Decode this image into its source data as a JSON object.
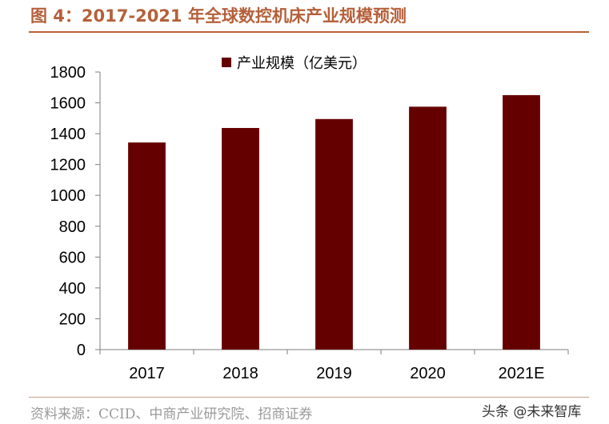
{
  "header": {
    "title": "图 4：2017-2021 年全球数控机床产业规模预测"
  },
  "footer": {
    "source": "资料来源：CCID、中商产业研究院、招商证券",
    "watermark": "头条 @未来智库"
  },
  "colors": {
    "title": "#b5603a",
    "bar": "#650000",
    "rule": "#b5603a",
    "axis": "#7f7f7f"
  },
  "chart_data": {
    "type": "bar",
    "categories": [
      "2017",
      "2018",
      "2019",
      "2020",
      "2021E"
    ],
    "series": [
      {
        "name": "产业规模（亿美元）",
        "values": [
          1343,
          1437,
          1495,
          1575,
          1650
        ]
      }
    ],
    "ylim": [
      0,
      1800
    ],
    "yticks": [
      0,
      200,
      400,
      600,
      800,
      1000,
      1200,
      1400,
      1600,
      1800
    ],
    "ytick_labels": [
      "0",
      "200",
      "400",
      "600",
      "800",
      "1000",
      "1200",
      "1400",
      "1600",
      "1800"
    ],
    "grid": false,
    "legend": "top-center"
  }
}
